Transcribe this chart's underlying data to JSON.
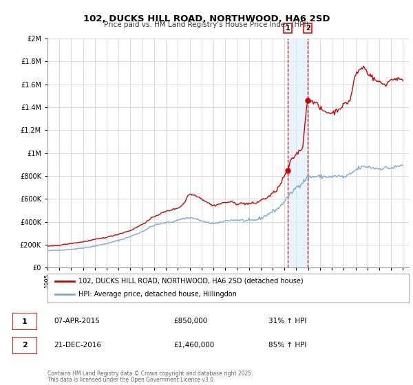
{
  "title": "102, DUCKS HILL ROAD, NORTHWOOD, HA6 2SD",
  "subtitle": "Price paid vs. HM Land Registry's House Price Index (HPI)",
  "legend_label_red": "102, DUCKS HILL ROAD, NORTHWOOD, HA6 2SD (detached house)",
  "legend_label_blue": "HPI: Average price, detached house, Hillingdon",
  "transaction1_date": "07-APR-2015",
  "transaction1_price": "£850,000",
  "transaction1_hpi": "31% ↑ HPI",
  "transaction1_year": 2015.27,
  "transaction1_value": 850000,
  "transaction2_date": "21-DEC-2016",
  "transaction2_price": "£1,460,000",
  "transaction2_hpi": "85% ↑ HPI",
  "transaction2_year": 2016.97,
  "transaction2_value": 1460000,
  "vline1_x": 2015.27,
  "vline2_x": 2016.97,
  "shade_x1": 2015.27,
  "shade_x2": 2016.97,
  "footer_line1": "Contains HM Land Registry data © Crown copyright and database right 2025.",
  "footer_line2": "This data is licensed under the Open Government Licence v3.0.",
  "ylim": [
    0,
    2000000
  ],
  "xlim": [
    1995,
    2025.5
  ],
  "red_color": "#cc0000",
  "blue_color": "#7aaad0",
  "background_color": "#ffffff",
  "grid_color": "#cccccc",
  "shade_color": "#ddeeff",
  "hpi_anchor_years": [
    1995.0,
    1996.0,
    1997.0,
    1998.0,
    1999.0,
    2000.0,
    2001.0,
    2002.0,
    2003.0,
    2004.0,
    2005.0,
    2005.5,
    2006.0,
    2007.0,
    2007.5,
    2008.0,
    2008.5,
    2009.0,
    2009.5,
    2010.0,
    2011.0,
    2012.0,
    2012.5,
    2013.0,
    2014.0,
    2014.5,
    2015.0,
    2015.5,
    2016.0,
    2016.5,
    2017.0,
    2018.0,
    2019.0,
    2019.5,
    2020.0,
    2020.5,
    2021.0,
    2021.5,
    2022.0,
    2022.5,
    2023.0,
    2023.5,
    2024.0,
    2024.5,
    2025.0
  ],
  "hpi_anchor_values": [
    148000,
    152000,
    160000,
    172000,
    188000,
    210000,
    238000,
    272000,
    315000,
    368000,
    392000,
    398000,
    415000,
    435000,
    425000,
    408000,
    392000,
    385000,
    390000,
    408000,
    415000,
    408000,
    415000,
    432000,
    490000,
    520000,
    580000,
    640000,
    700000,
    740000,
    790000,
    795000,
    792000,
    800000,
    790000,
    810000,
    850000,
    875000,
    880000,
    870000,
    865000,
    870000,
    870000,
    880000,
    900000
  ],
  "red_anchor_years": [
    1995.0,
    1995.5,
    1996.0,
    1996.5,
    1997.0,
    1997.5,
    1998.0,
    1998.5,
    1999.0,
    1999.5,
    2000.0,
    2000.5,
    2001.0,
    2001.5,
    2002.0,
    2002.5,
    2003.0,
    2003.5,
    2004.0,
    2004.5,
    2005.0,
    2005.5,
    2006.0,
    2006.5,
    2007.0,
    2007.3,
    2007.7,
    2008.0,
    2008.5,
    2009.0,
    2009.5,
    2010.0,
    2010.5,
    2011.0,
    2011.5,
    2012.0,
    2012.5,
    2013.0,
    2013.5,
    2014.0,
    2014.5,
    2015.0,
    2015.27,
    2015.5,
    2016.0,
    2016.5,
    2016.97,
    2017.3,
    2017.7,
    2018.0,
    2018.5,
    2019.0,
    2019.5,
    2020.0,
    2020.5,
    2021.0,
    2021.3,
    2021.7,
    2022.0,
    2022.3,
    2022.5,
    2023.0,
    2023.5,
    2024.0,
    2024.5,
    2025.0
  ],
  "red_anchor_values": [
    185000,
    190000,
    195000,
    203000,
    210000,
    218000,
    225000,
    235000,
    245000,
    255000,
    265000,
    278000,
    292000,
    308000,
    325000,
    350000,
    378000,
    410000,
    445000,
    468000,
    490000,
    505000,
    520000,
    560000,
    640000,
    635000,
    620000,
    600000,
    570000,
    542000,
    555000,
    568000,
    572000,
    558000,
    560000,
    558000,
    562000,
    588000,
    610000,
    645000,
    700000,
    800000,
    850000,
    920000,
    990000,
    1050000,
    1460000,
    1460000,
    1430000,
    1390000,
    1360000,
    1350000,
    1380000,
    1420000,
    1460000,
    1680000,
    1720000,
    1750000,
    1700000,
    1680000,
    1650000,
    1620000,
    1600000,
    1640000,
    1650000,
    1620000
  ]
}
